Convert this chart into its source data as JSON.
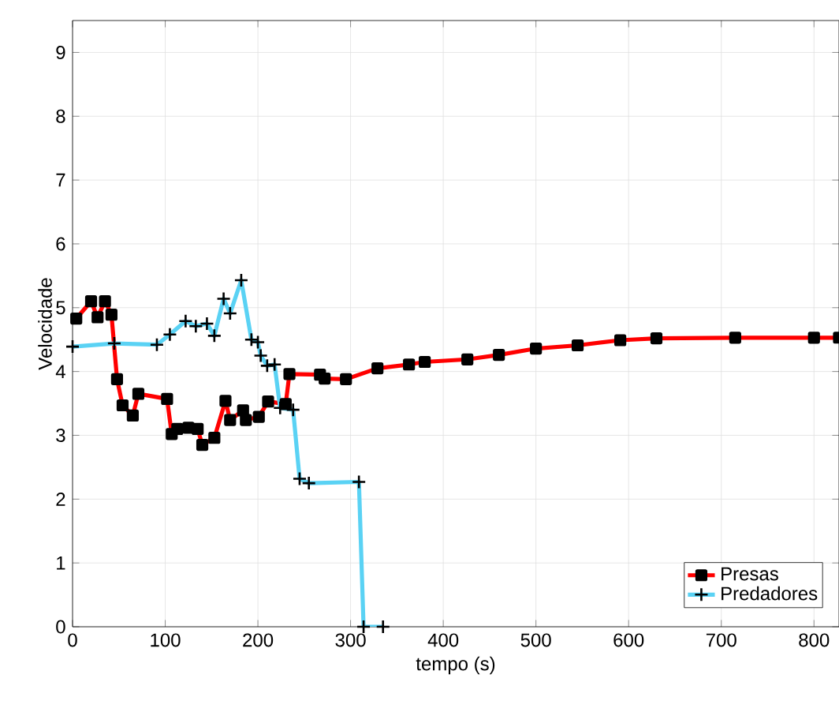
{
  "chart_data": {
    "type": "line",
    "xlabel": "tempo (s)",
    "ylabel": "Velocidade",
    "xlim": [
      0,
      827
    ],
    "ylim": [
      0,
      9.5
    ],
    "xticks": [
      0,
      100,
      200,
      300,
      400,
      500,
      600,
      700,
      800
    ],
    "yticks": [
      0,
      1,
      2,
      3,
      4,
      5,
      6,
      7,
      8,
      9
    ],
    "grid": true,
    "legend": "bottom right",
    "series": [
      {
        "name": "Presas",
        "color": "#ff0000",
        "marker": "square",
        "x": [
          4,
          20,
          27,
          35,
          42,
          48,
          54,
          65,
          71,
          102,
          107,
          113,
          125,
          135,
          140,
          153,
          165,
          170,
          184,
          187,
          201,
          211,
          230,
          234,
          267,
          272,
          295,
          329,
          363,
          380,
          426,
          460,
          500,
          545,
          591,
          630,
          715,
          800,
          827
        ],
        "values": [
          4.83,
          5.1,
          4.85,
          5.1,
          4.89,
          3.88,
          3.47,
          3.31,
          3.65,
          3.57,
          3.02,
          3.1,
          3.12,
          3.1,
          2.85,
          2.96,
          3.54,
          3.24,
          3.39,
          3.24,
          3.29,
          3.53,
          3.49,
          3.96,
          3.95,
          3.89,
          3.88,
          4.05,
          4.11,
          4.15,
          4.19,
          4.26,
          4.36,
          4.41,
          4.49,
          4.52,
          4.53,
          4.53,
          4.53
        ]
      },
      {
        "name": "Predadores",
        "color": "#5ad2f4",
        "marker": "cross",
        "x": [
          0,
          45,
          91,
          105,
          122,
          133,
          145,
          153,
          163,
          170,
          182,
          193,
          200,
          203,
          210,
          218,
          224,
          238,
          245,
          255,
          309,
          314,
          335
        ],
        "values": [
          4.39,
          4.44,
          4.42,
          4.58,
          4.79,
          4.71,
          4.75,
          4.56,
          5.14,
          4.91,
          5.43,
          4.5,
          4.46,
          4.25,
          4.09,
          4.11,
          3.43,
          3.4,
          2.32,
          2.25,
          2.27,
          0,
          0
        ]
      }
    ]
  }
}
